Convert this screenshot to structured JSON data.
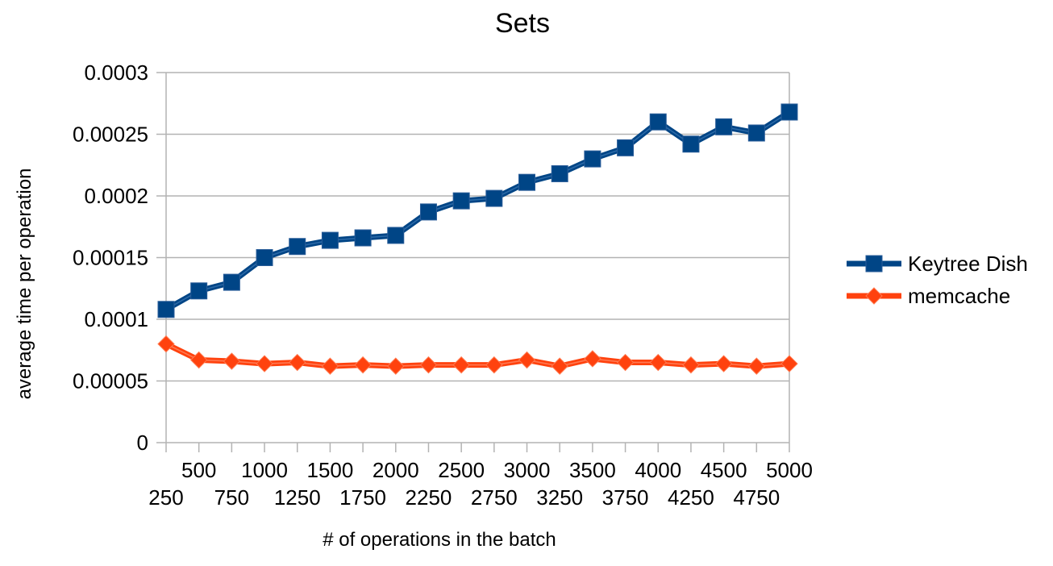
{
  "chart_data": {
    "type": "line",
    "title": "Sets",
    "xlabel": "# of operations in the batch",
    "ylabel": "average time per operation",
    "categories": [
      "250",
      "500",
      "750",
      "1000",
      "1250",
      "1500",
      "1750",
      "2000",
      "2250",
      "2500",
      "2750",
      "3000",
      "3250",
      "3500",
      "3750",
      "4000",
      "4250",
      "4500",
      "4750",
      "5000"
    ],
    "yticks": [
      "0",
      "0.00005",
      "0.0001",
      "0.00015",
      "0.0002",
      "0.00025",
      "0.0003"
    ],
    "ylim": [
      0,
      0.0003
    ],
    "grid": true,
    "legend_position": "right",
    "series": [
      {
        "name": "Keytree Dish",
        "color": "#004586",
        "marker": "square",
        "values": [
          0.000108,
          0.000123,
          0.00013,
          0.00015,
          0.000159,
          0.000164,
          0.000166,
          0.000168,
          0.000187,
          0.000196,
          0.000198,
          0.000211,
          0.000218,
          0.00023,
          0.000239,
          0.00026,
          0.000242,
          0.000256,
          0.000251,
          0.000268
        ]
      },
      {
        "name": "memcache",
        "color": "#ff420e",
        "marker": "diamond",
        "values": [
          8e-05,
          6.7e-05,
          6.6e-05,
          6.4e-05,
          6.5e-05,
          6.2e-05,
          6.3e-05,
          6.2e-05,
          6.3e-05,
          6.3e-05,
          6.3e-05,
          6.7e-05,
          6.2e-05,
          6.8e-05,
          6.5e-05,
          6.5e-05,
          6.3e-05,
          6.4e-05,
          6.2e-05,
          6.4e-05
        ]
      }
    ]
  }
}
